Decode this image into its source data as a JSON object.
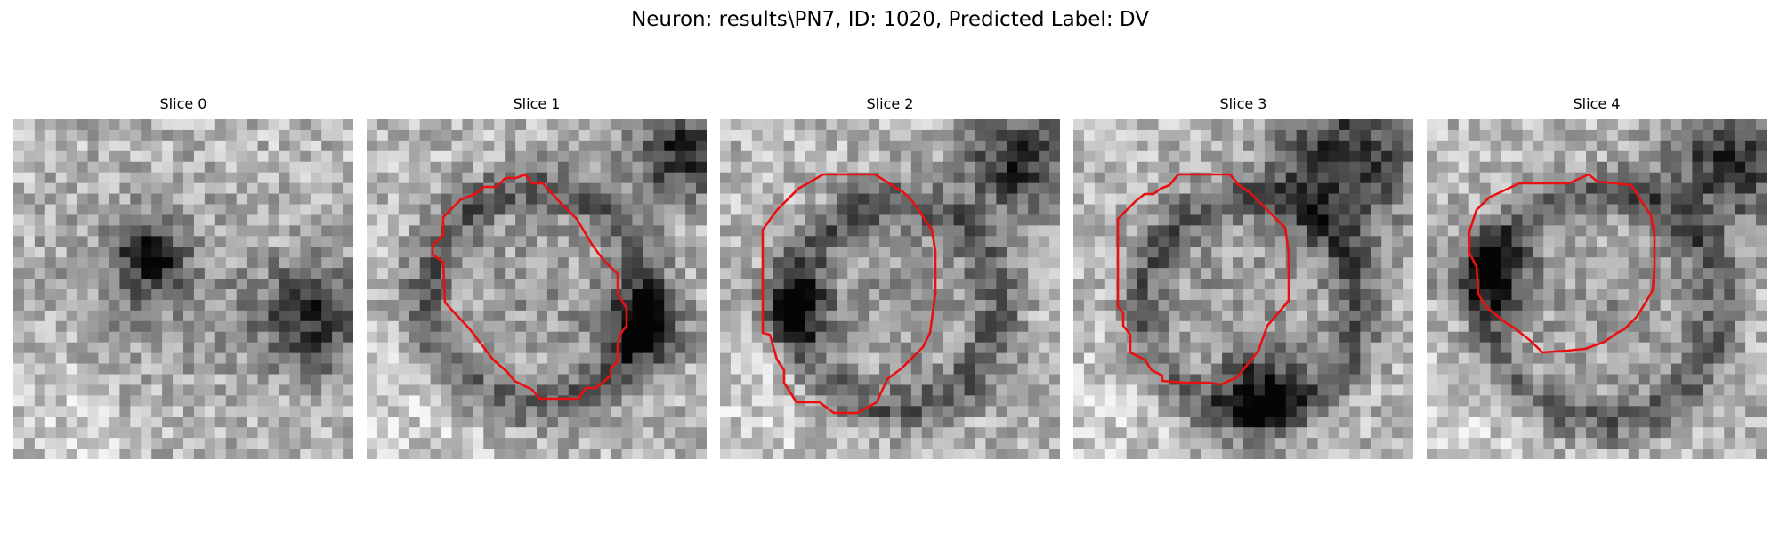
{
  "figure": {
    "title": "Neuron: results\\PN7, ID: 1020, Predicted Label: DV"
  },
  "panels": [
    {
      "title": "Slice 0",
      "has_contour": false
    },
    {
      "title": "Slice 1",
      "has_contour": true
    },
    {
      "title": "Slice 2",
      "has_contour": true
    },
    {
      "title": "Slice 3",
      "has_contour": true
    },
    {
      "title": "Slice 4",
      "has_contour": true
    }
  ],
  "colors": {
    "contour": "#e81010",
    "background": "#ffffff"
  }
}
